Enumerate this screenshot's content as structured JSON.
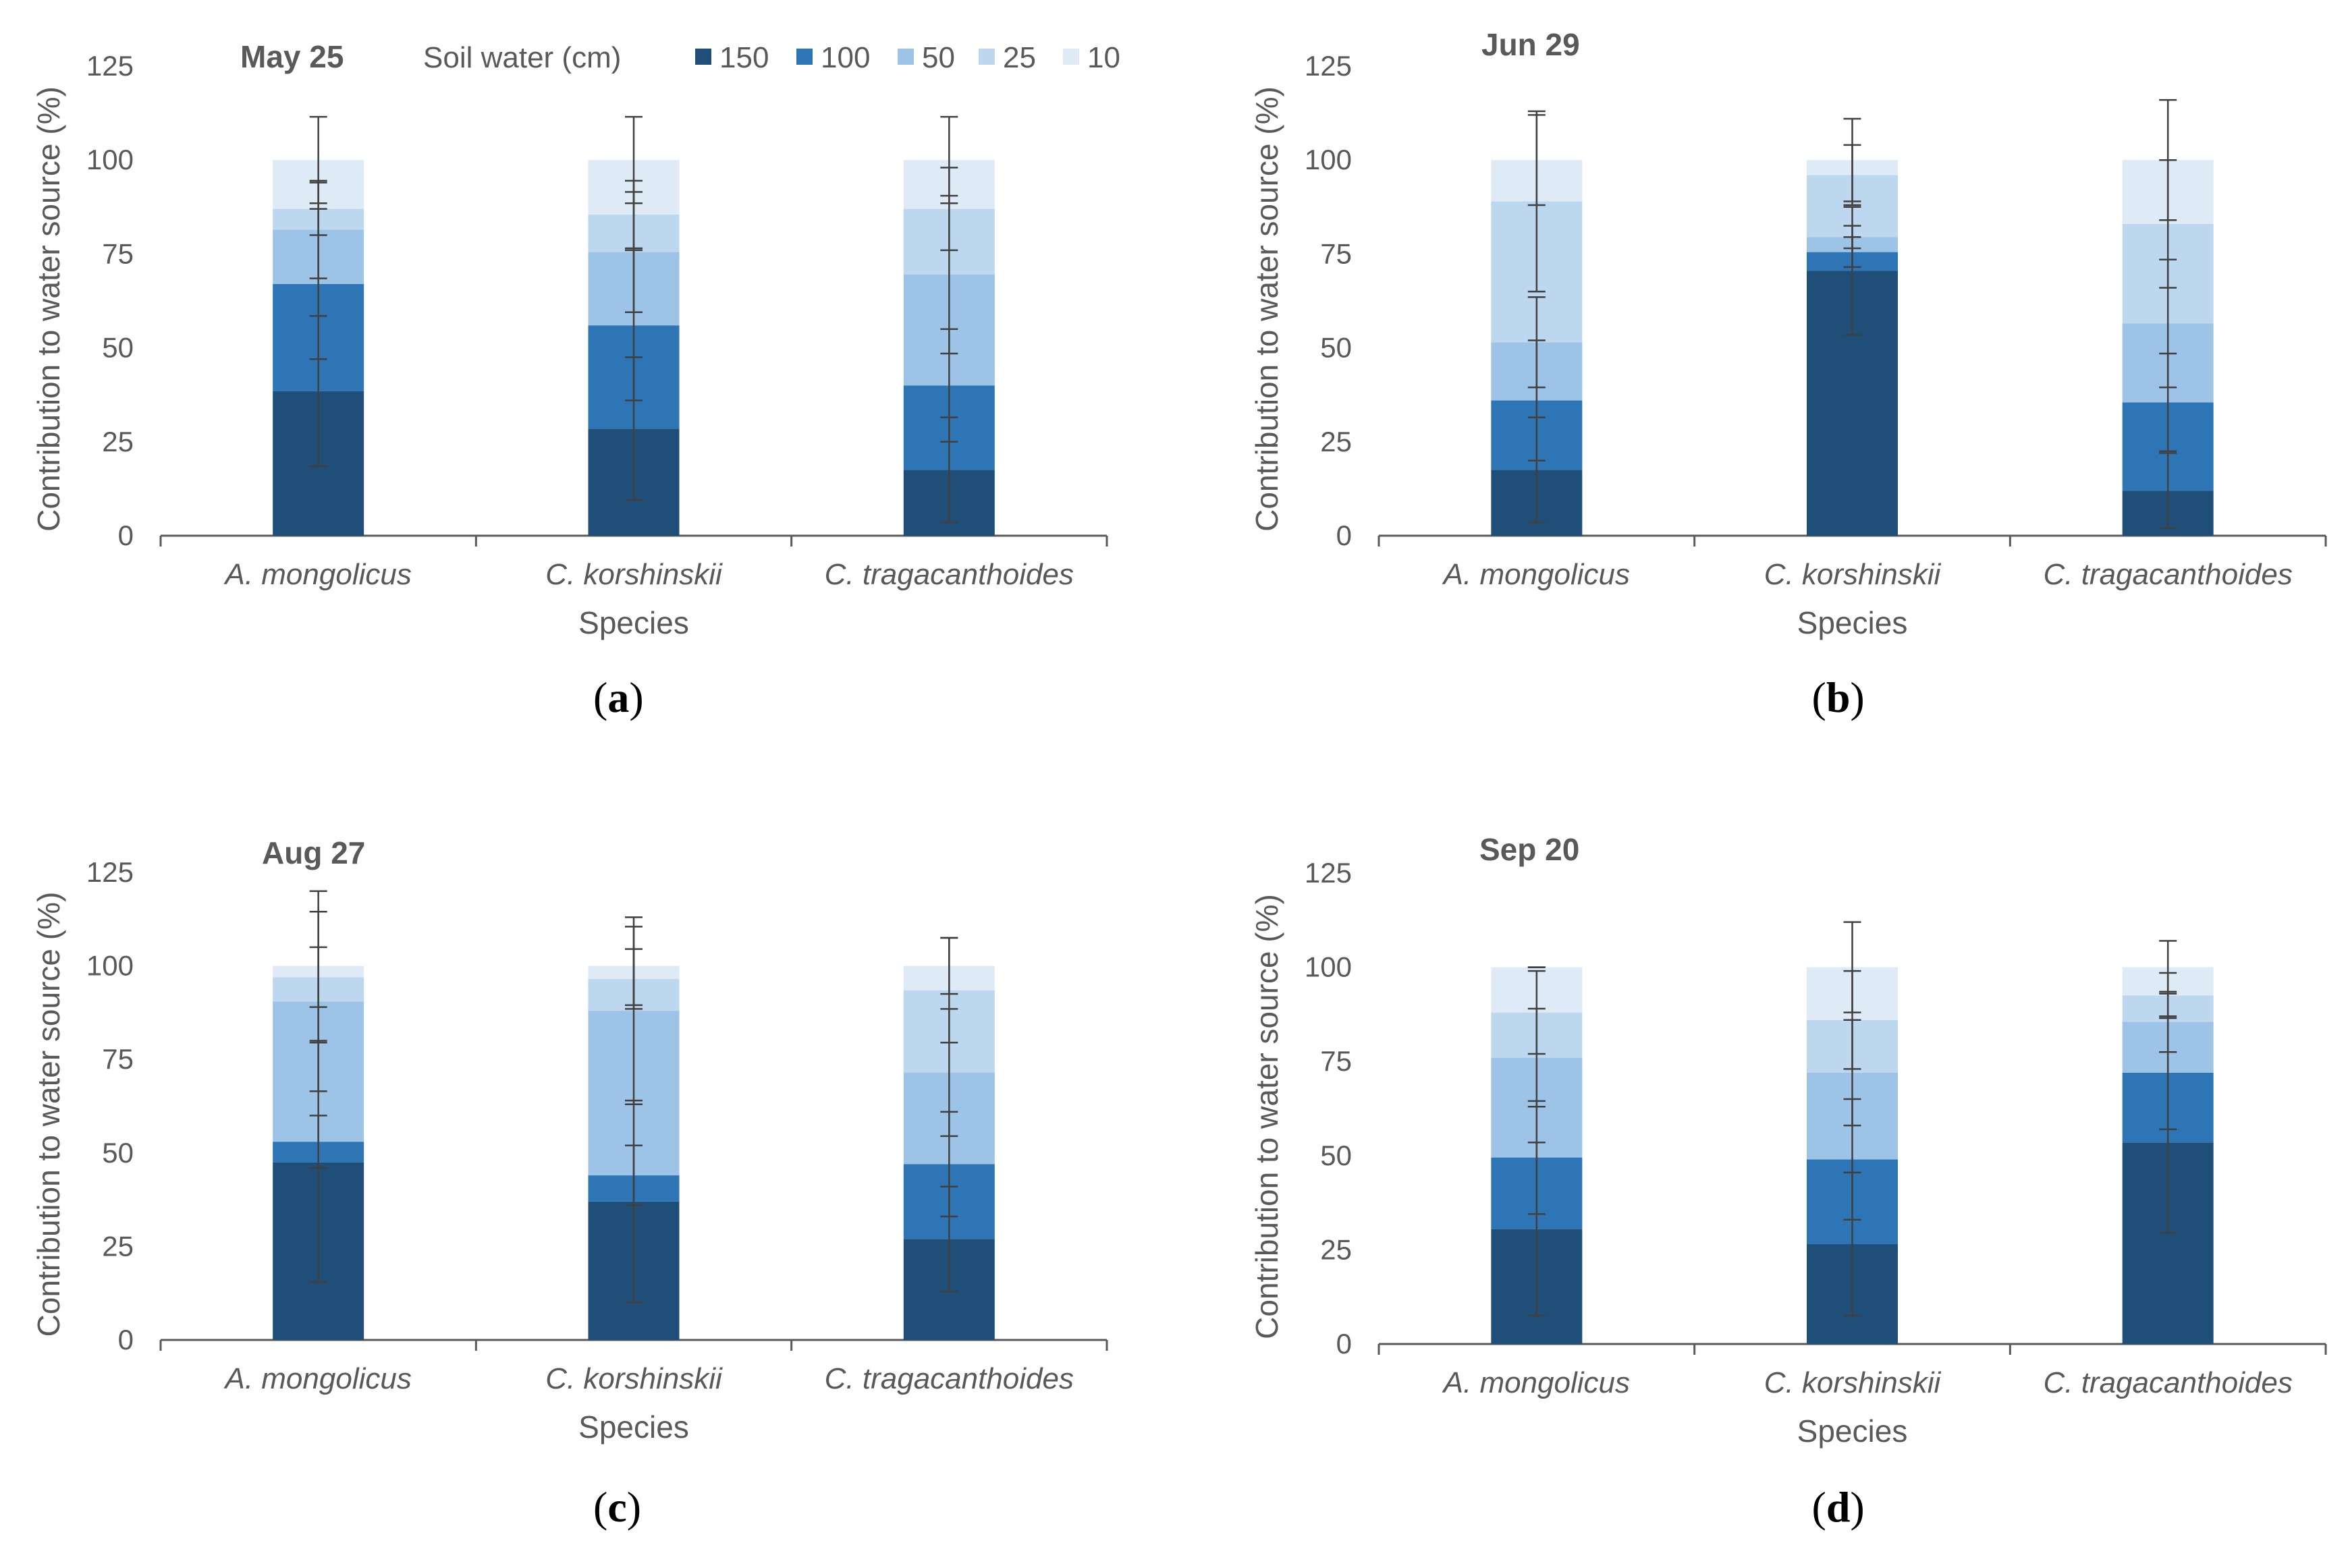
{
  "colors": {
    "150": "#1f4e79",
    "100": "#2e75b6",
    "50": "#9dc3e6",
    "25": "#bdd7ee",
    "10": "#deebf7",
    "axis": "#595959",
    "errorbar": "#404040"
  },
  "legend": {
    "title": "Soil water (cm)",
    "entries": [
      "150",
      "100",
      "50",
      "25",
      "10"
    ]
  },
  "chart_data": [
    {
      "type": "bar",
      "stacked": true,
      "panel_label": "a",
      "title": "May 25",
      "xlabel": "Species",
      "ylabel": "Contribution to water source (%)",
      "ylim": [
        0,
        125
      ],
      "yticks": [
        0,
        25,
        50,
        75,
        100,
        125
      ],
      "categories": [
        "A. mongolicus",
        "C. korshinskii",
        "C. tragacanthoides"
      ],
      "series": [
        {
          "name": "150",
          "values": [
            38.5,
            28.5,
            17.5
          ],
          "errors": [
            20,
            19,
            14
          ]
        },
        {
          "name": "100",
          "values": [
            28.5,
            27.5,
            22.5
          ],
          "errors": [
            20,
            20,
            15
          ]
        },
        {
          "name": "50",
          "values": [
            14.5,
            19.5,
            29.5
          ],
          "errors": [
            13,
            16,
            21
          ]
        },
        {
          "name": "25",
          "values": [
            5.5,
            10,
            17.5
          ],
          "errors": [
            7,
            9,
            11
          ]
        },
        {
          "name": "10",
          "values": [
            13,
            14.5,
            13
          ],
          "errors": [
            11.5,
            11.5,
            11.5
          ]
        }
      ]
    },
    {
      "type": "bar",
      "stacked": true,
      "panel_label": "b",
      "title": "Jun 29",
      "xlabel": "Species",
      "ylabel": "Contribution to water source (%)",
      "ylim": [
        0,
        125
      ],
      "yticks": [
        0,
        25,
        50,
        75,
        100,
        125
      ],
      "categories": [
        "A. mongolicus",
        "C. korshinskii",
        "C. tragacanthoides"
      ],
      "series": [
        {
          "name": "150",
          "values": [
            17.5,
            70.5,
            12
          ],
          "errors": [
            14,
            17,
            10
          ]
        },
        {
          "name": "100",
          "values": [
            18.5,
            5,
            23.5
          ],
          "errors": [
            16,
            4,
            13
          ]
        },
        {
          "name": "50",
          "values": [
            15.5,
            4,
            21
          ],
          "errors": [
            12,
            3,
            17
          ]
        },
        {
          "name": "25",
          "values": [
            37.5,
            16.5,
            26.5
          ],
          "errors": [
            24,
            8,
            17
          ]
        },
        {
          "name": "10",
          "values": [
            11,
            4,
            17
          ],
          "errors": [
            12,
            11,
            16
          ]
        }
      ]
    },
    {
      "type": "bar",
      "stacked": true,
      "panel_label": "c",
      "title": "Aug 27",
      "xlabel": "Species",
      "ylabel": "Contribution to water source (%)",
      "ylim": [
        0,
        125
      ],
      "yticks": [
        0,
        25,
        50,
        75,
        100,
        125
      ],
      "categories": [
        "A. mongolicus",
        "C. korshinskii",
        "C. tragacanthoides"
      ],
      "series": [
        {
          "name": "150",
          "values": [
            47.5,
            37,
            27
          ],
          "errors": [
            32,
            27,
            14
          ]
        },
        {
          "name": "100",
          "values": [
            5.5,
            7,
            20
          ],
          "errors": [
            7,
            8,
            14
          ]
        },
        {
          "name": "50",
          "values": [
            37.5,
            44,
            24.5
          ],
          "errors": [
            24,
            25,
            17
          ]
        },
        {
          "name": "25",
          "values": [
            6.5,
            8.5,
            22
          ],
          "errors": [
            8,
            8,
            14
          ]
        },
        {
          "name": "10",
          "values": [
            3,
            3.5,
            6.5
          ],
          "errors": [
            20,
            10.5,
            7.5
          ]
        }
      ]
    },
    {
      "type": "bar",
      "stacked": true,
      "panel_label": "d",
      "title": "Sep 20",
      "xlabel": "Species",
      "ylabel": "Contribution to water source (%)",
      "ylim": [
        0,
        125
      ],
      "yticks": [
        0,
        25,
        50,
        75,
        100,
        125
      ],
      "categories": [
        "A. mongolicus",
        "C. korshinskii",
        "C. tragacanthoides"
      ],
      "series": [
        {
          "name": "150",
          "values": [
            30.5,
            26.5,
            53.5
          ],
          "errors": [
            23,
            19,
            24
          ]
        },
        {
          "name": "100",
          "values": [
            19,
            22.5,
            18.5
          ],
          "errors": [
            15,
            16,
            15
          ]
        },
        {
          "name": "50",
          "values": [
            26.5,
            23,
            13.5
          ],
          "errors": [
            13,
            14,
            8
          ]
        },
        {
          "name": "25",
          "values": [
            12,
            14,
            7
          ],
          "errors": [
            11,
            13,
            6
          ]
        },
        {
          "name": "10",
          "values": [
            12,
            14,
            7.5
          ],
          "errors": [
            0,
            12,
            7
          ]
        }
      ]
    }
  ]
}
